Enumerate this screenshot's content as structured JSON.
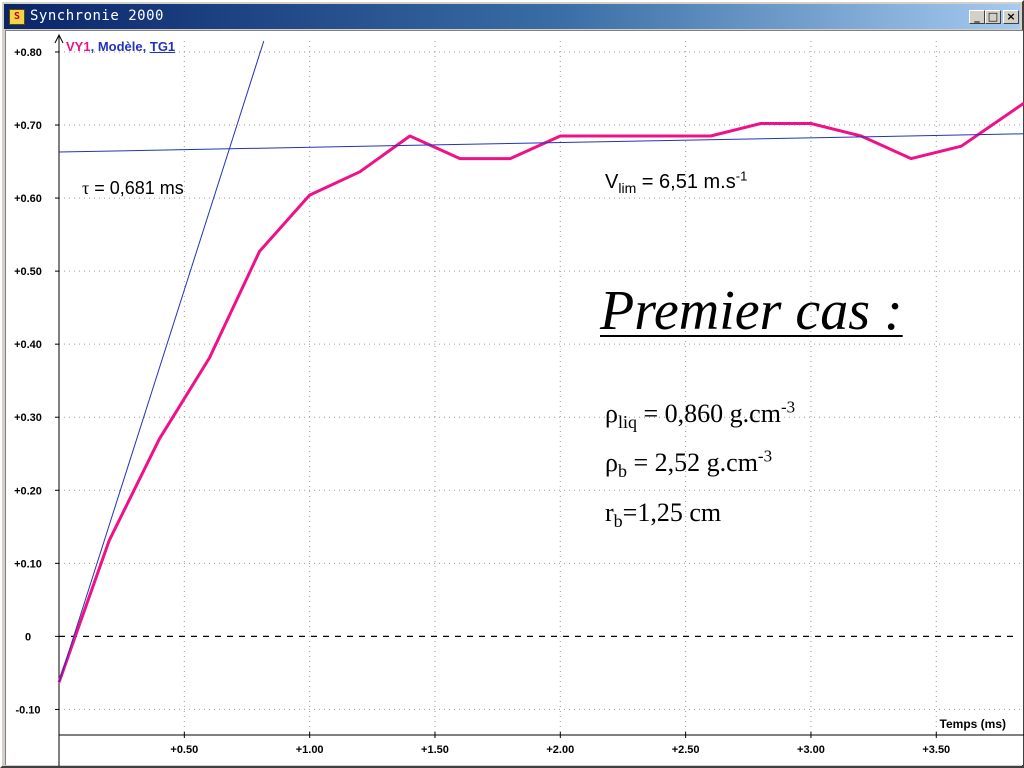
{
  "window": {
    "title": "Synchronie 2000",
    "controls": {
      "minimize": "_",
      "maximize": "□",
      "close": "×"
    }
  },
  "legend": {
    "series1": "VY1",
    "series2": "Modèle",
    "series3": "TG1",
    "sep": ","
  },
  "annotations": {
    "tau": {
      "symbol": "τ",
      "text": " = 0,681 ms"
    },
    "vlim": {
      "v": "V",
      "sub": "lim",
      "text": " = 6,51 m.s",
      "sup": "-1"
    },
    "heading": "Premier cas :",
    "rho_liq": {
      "symbol": "ρ",
      "sub": "liq",
      "text": " = 0,860 g.cm",
      "sup": "-3"
    },
    "rho_b": {
      "symbol": "ρ",
      "sub": "b",
      "text": " = 2,52 g.cm",
      "sup": "-3"
    },
    "r_b": {
      "symbol": "r",
      "sub": "b",
      "text": "=1,25 cm"
    }
  },
  "chart_data": {
    "type": "line",
    "xlabel": "Temps (ms)",
    "xlim": [
      0,
      3.85
    ],
    "ylim": [
      -0.135,
      0.815
    ],
    "x_ticks": [
      0.5,
      1.0,
      1.5,
      2.0,
      2.5,
      3.0,
      3.5
    ],
    "x_tick_labels": [
      "+0.50",
      "+1.00",
      "+1.50",
      "+2.00",
      "+2.50",
      "+3.00",
      "+3.50"
    ],
    "y_ticks": [
      0.8,
      0.7,
      0.6,
      0.5,
      0.4,
      0.3,
      0.2,
      0.1,
      0,
      -0.1
    ],
    "y_tick_labels": [
      "+0.80",
      "+0.70",
      "+0.60",
      "+0.50",
      "+0.40",
      "+0.30",
      "+0.20",
      "+0.10",
      "0",
      "-0.10"
    ],
    "grid": true,
    "series": [
      {
        "name": "VY1",
        "color": "#ee1188",
        "x": [
          0,
          0.2,
          0.4,
          0.6,
          0.8,
          1.0,
          1.2,
          1.4,
          1.6,
          1.8,
          2.0,
          2.2,
          2.4,
          2.6,
          2.8,
          3.0,
          3.2,
          3.4,
          3.6,
          3.85
        ],
        "y": [
          -0.063,
          0.131,
          0.27,
          0.381,
          0.527,
          0.604,
          0.636,
          0.685,
          0.654,
          0.654,
          0.685,
          0.685,
          0.685,
          0.685,
          0.702,
          0.702,
          0.685,
          0.654,
          0.671,
          0.73
        ]
      },
      {
        "name": "Modèle",
        "color": "#2233bb",
        "x": [
          0,
          3.85
        ],
        "y": [
          0.663,
          0.688
        ]
      },
      {
        "name": "TG1",
        "color": "#2233bb",
        "x": [
          0,
          0.817
        ],
        "y": [
          -0.063,
          0.815
        ]
      }
    ]
  }
}
